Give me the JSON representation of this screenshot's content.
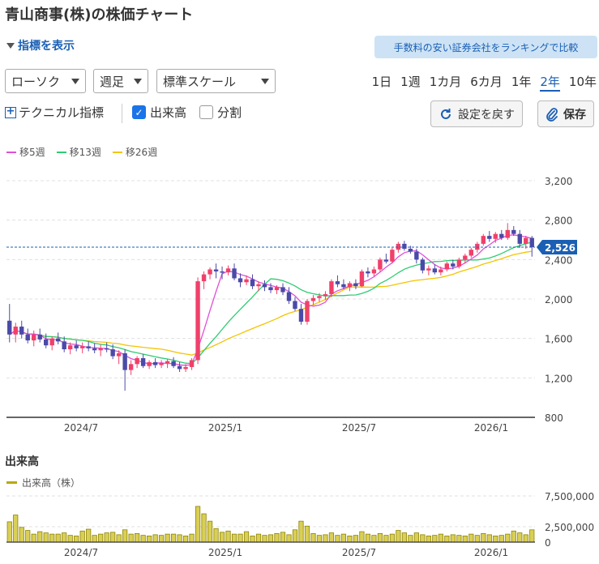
{
  "page": {
    "title": "青山商事(株)の株価チャート",
    "indicator_toggle": "指標を表示",
    "promo": "手数料の安い証券会社をランキングで比較"
  },
  "controls": {
    "chart_type": "ローソク",
    "interval": "週足",
    "scale": "標準スケール",
    "periods": [
      "1日",
      "1週",
      "1カ月",
      "6カ月",
      "1年",
      "2年",
      "10年"
    ],
    "active_period": "2年",
    "technical": "テクニカル指標",
    "volume_check": "出来高",
    "split_check": "分割",
    "volume_checked": true,
    "split_checked": false,
    "reset": "設定を戻す",
    "save": "保存"
  },
  "legend": {
    "ma5": "移5週",
    "ma13": "移13週",
    "ma26": "移26週",
    "colors": {
      "ma5": "#e14fd8",
      "ma13": "#2ecc71",
      "ma26": "#f5c400",
      "up": "#f0406a",
      "down": "#4a4aa8",
      "volume": "#b8a800",
      "current": "#1a5fb4"
    }
  },
  "volume": {
    "heading": "出来高",
    "legend": "出来高（株）"
  },
  "chart_data": {
    "type": "candlestick",
    "price_axis": {
      "ylim": [
        800,
        3200
      ],
      "ticks": [
        "800",
        "1,200",
        "1,600",
        "2,000",
        "2,400",
        "2,800",
        "3,200"
      ]
    },
    "x_ticks": [
      "2024/7",
      "2025/1",
      "2025/7",
      "2026/1"
    ],
    "current_price": "2,526",
    "volume_axis": {
      "ylim": [
        0,
        7500000
      ],
      "ticks": [
        "0",
        "2,500,000",
        "7,500,000"
      ]
    },
    "candles": [
      [
        1780,
        1950,
        1560,
        1640
      ],
      [
        1640,
        1760,
        1560,
        1720
      ],
      [
        1720,
        1780,
        1600,
        1640
      ],
      [
        1640,
        1700,
        1550,
        1580
      ],
      [
        1580,
        1680,
        1520,
        1640
      ],
      [
        1640,
        1700,
        1560,
        1590
      ],
      [
        1590,
        1650,
        1500,
        1530
      ],
      [
        1530,
        1620,
        1480,
        1600
      ],
      [
        1600,
        1660,
        1540,
        1570
      ],
      [
        1570,
        1620,
        1460,
        1490
      ],
      [
        1490,
        1560,
        1440,
        1530
      ],
      [
        1530,
        1580,
        1470,
        1500
      ],
      [
        1500,
        1560,
        1450,
        1520
      ],
      [
        1520,
        1570,
        1470,
        1500
      ],
      [
        1500,
        1550,
        1450,
        1480
      ],
      [
        1480,
        1540,
        1420,
        1500
      ],
      [
        1500,
        1560,
        1460,
        1490
      ],
      [
        1490,
        1540,
        1390,
        1420
      ],
      [
        1420,
        1480,
        1340,
        1450
      ],
      [
        1450,
        1490,
        1070,
        1280
      ],
      [
        1280,
        1380,
        1230,
        1340
      ],
      [
        1340,
        1420,
        1300,
        1400
      ],
      [
        1400,
        1440,
        1300,
        1320
      ],
      [
        1320,
        1380,
        1290,
        1360
      ],
      [
        1360,
        1400,
        1300,
        1330
      ],
      [
        1330,
        1380,
        1300,
        1350
      ],
      [
        1350,
        1390,
        1300,
        1370
      ],
      [
        1370,
        1410,
        1300,
        1320
      ],
      [
        1320,
        1360,
        1260,
        1290
      ],
      [
        1290,
        1340,
        1260,
        1310
      ],
      [
        1310,
        1400,
        1280,
        1380
      ],
      [
        1380,
        2220,
        1340,
        2180
      ],
      [
        2180,
        2280,
        2100,
        2250
      ],
      [
        2250,
        2320,
        2200,
        2300
      ],
      [
        2300,
        2360,
        2210,
        2280
      ],
      [
        2280,
        2330,
        2200,
        2270
      ],
      [
        2270,
        2340,
        2240,
        2310
      ],
      [
        2310,
        2360,
        2190,
        2210
      ],
      [
        2210,
        2260,
        2120,
        2170
      ],
      [
        2170,
        2240,
        2140,
        2200
      ],
      [
        2200,
        2250,
        2100,
        2130
      ],
      [
        2130,
        2180,
        2080,
        2150
      ],
      [
        2150,
        2190,
        2080,
        2120
      ],
      [
        2120,
        2160,
        2060,
        2090
      ],
      [
        2090,
        2140,
        2050,
        2120
      ],
      [
        2120,
        2160,
        2040,
        2070
      ],
      [
        2070,
        2120,
        1950,
        1980
      ],
      [
        1980,
        2020,
        1880,
        1900
      ],
      [
        1900,
        1950,
        1740,
        1770
      ],
      [
        1770,
        2000,
        1740,
        1980
      ],
      [
        1980,
        2040,
        1940,
        2010
      ],
      [
        2010,
        2060,
        1970,
        2030
      ],
      [
        2030,
        2080,
        1990,
        2050
      ],
      [
        2050,
        2200,
        2020,
        2180
      ],
      [
        2180,
        2240,
        2120,
        2150
      ],
      [
        2150,
        2200,
        2100,
        2120
      ],
      [
        2120,
        2180,
        2080,
        2160
      ],
      [
        2160,
        2200,
        2100,
        2130
      ],
      [
        2130,
        2300,
        2120,
        2280
      ],
      [
        2280,
        2320,
        2220,
        2260
      ],
      [
        2260,
        2330,
        2230,
        2300
      ],
      [
        2300,
        2420,
        2280,
        2400
      ],
      [
        2400,
        2460,
        2360,
        2380
      ],
      [
        2380,
        2520,
        2360,
        2500
      ],
      [
        2500,
        2580,
        2470,
        2560
      ],
      [
        2560,
        2590,
        2490,
        2510
      ],
      [
        2510,
        2540,
        2460,
        2480
      ],
      [
        2480,
        2510,
        2360,
        2400
      ],
      [
        2400,
        2420,
        2260,
        2290
      ],
      [
        2290,
        2340,
        2240,
        2310
      ],
      [
        2310,
        2350,
        2250,
        2270
      ],
      [
        2270,
        2330,
        2240,
        2300
      ],
      [
        2300,
        2380,
        2280,
        2360
      ],
      [
        2360,
        2400,
        2300,
        2330
      ],
      [
        2330,
        2420,
        2310,
        2400
      ],
      [
        2400,
        2460,
        2360,
        2440
      ],
      [
        2440,
        2520,
        2420,
        2500
      ],
      [
        2500,
        2580,
        2470,
        2560
      ],
      [
        2560,
        2660,
        2540,
        2640
      ],
      [
        2640,
        2690,
        2580,
        2610
      ],
      [
        2610,
        2680,
        2570,
        2660
      ],
      [
        2660,
        2700,
        2600,
        2620
      ],
      [
        2620,
        2770,
        2600,
        2700
      ],
      [
        2700,
        2740,
        2640,
        2660
      ],
      [
        2660,
        2700,
        2520,
        2560
      ],
      [
        2560,
        2640,
        2510,
        2620
      ],
      [
        2620,
        2640,
        2430,
        2526
      ]
    ],
    "volume_values": [
      3.3,
      4.4,
      2.4,
      1.9,
      1.3,
      1.7,
      1.5,
      1.3,
      1.3,
      1.5,
      1.1,
      1.0,
      1.8,
      2.1,
      1.1,
      1.3,
      1.5,
      1.6,
      1.2,
      2.0,
      1.3,
      1.4,
      1.1,
      1.0,
      1.2,
      1.1,
      1.3,
      1.3,
      1.2,
      1.0,
      1.3,
      5.8,
      4.6,
      3.4,
      2.2,
      1.6,
      1.8,
      1.3,
      1.3,
      1.7,
      1.0,
      1.3,
      1.1,
      1.2,
      1.4,
      1.6,
      1.2,
      2.0,
      3.4,
      2.6,
      1.4,
      1.1,
      1.2,
      1.5,
      1.1,
      1.3,
      1.0,
      1.1,
      1.7,
      1.3,
      1.1,
      1.4,
      1.1,
      1.3,
      1.9,
      1.5,
      1.1,
      1.5,
      1.2,
      1.0,
      1.1,
      1.3,
      1.0,
      1.2,
      1.1,
      1.0,
      1.3,
      1.1,
      1.4,
      1.2,
      1.0,
      1.1,
      1.3,
      1.8,
      1.5,
      1.2,
      2.0
    ]
  }
}
